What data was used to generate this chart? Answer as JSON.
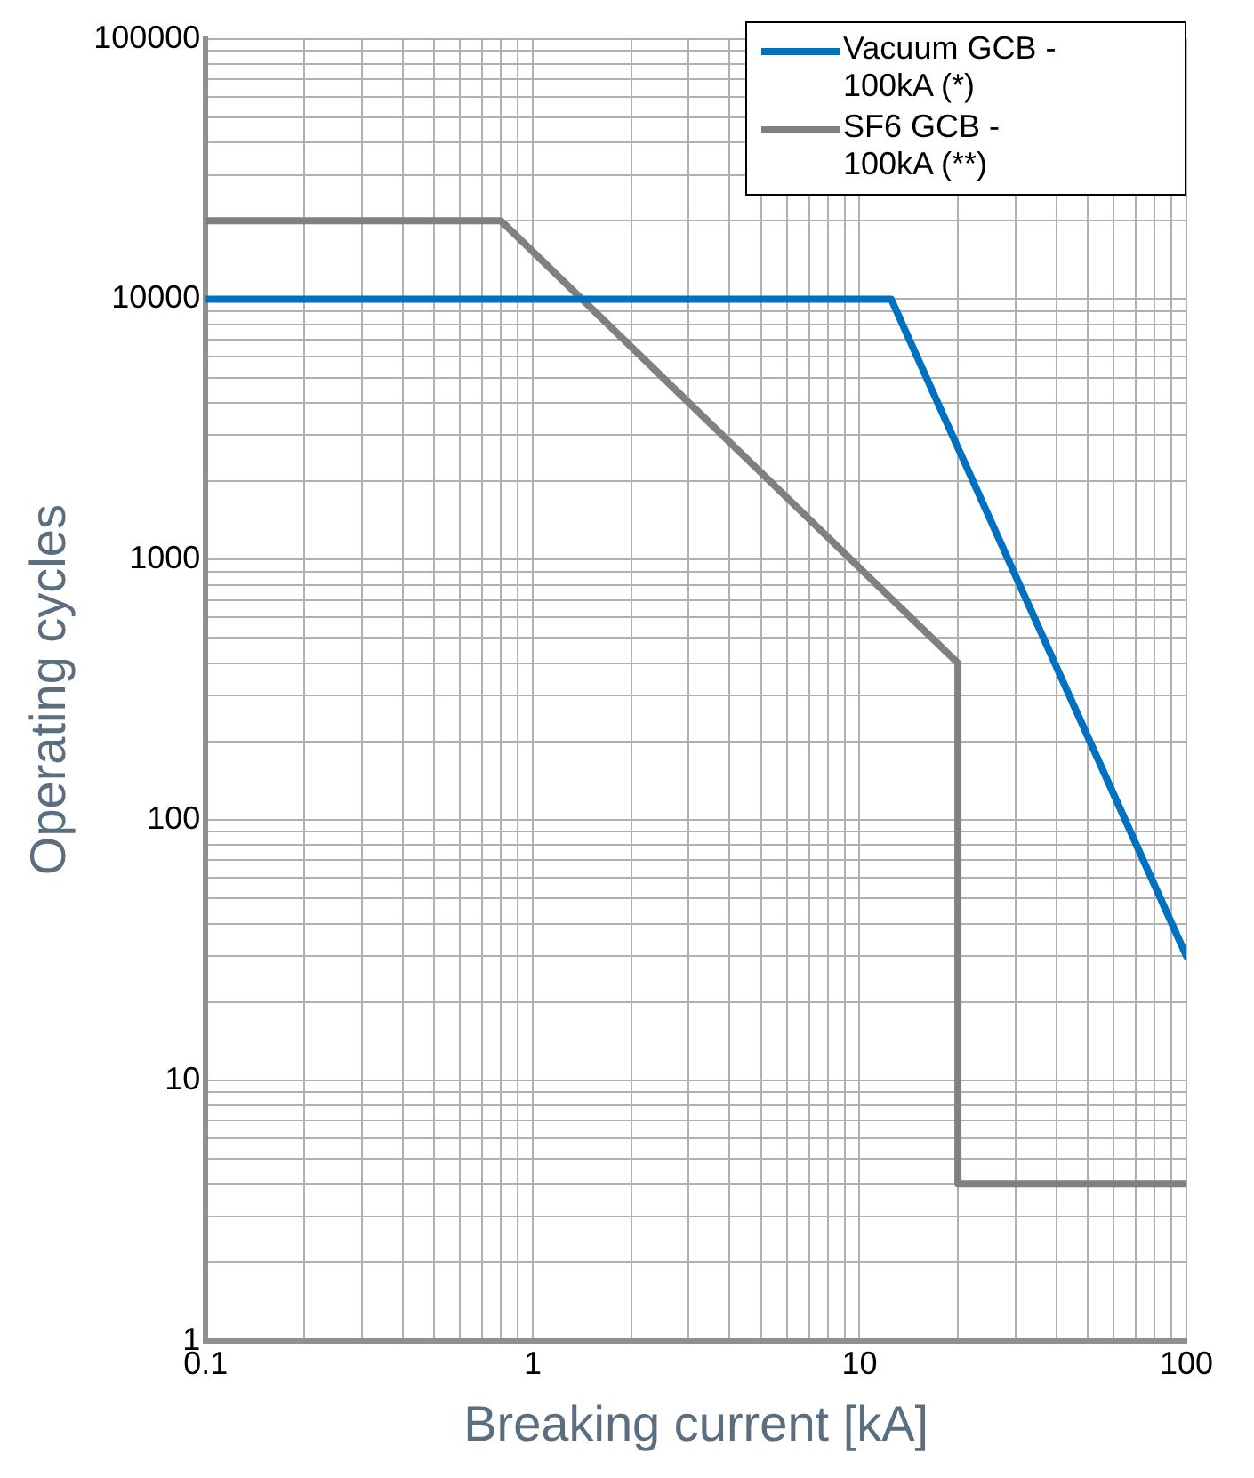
{
  "chart_data": {
    "type": "line",
    "xlabel": "Breaking current [kA]",
    "ylabel": "Operating cycles",
    "log": "xy",
    "grid": true,
    "legend": "top right",
    "marker": "none",
    "line_style": "solid",
    "xlim": [
      0.1,
      100
    ],
    "ylim": [
      1,
      100000
    ],
    "xticks": [
      0.1,
      {
        "value": 0.2,
        "label": null
      },
      {
        "value": 0.3,
        "label": null
      },
      {
        "value": 0.4,
        "label": null
      },
      {
        "value": 0.5,
        "label": null
      },
      {
        "value": 0.6,
        "label": null
      },
      {
        "value": 0.7,
        "label": null
      },
      {
        "value": 0.8,
        "label": null
      },
      {
        "value": 0.9,
        "label": null
      },
      1,
      {
        "value": 2,
        "label": null
      },
      {
        "value": 3,
        "label": null
      },
      {
        "value": 4,
        "label": null
      },
      {
        "value": 5,
        "label": null
      },
      {
        "value": 6,
        "label": null
      },
      {
        "value": 7,
        "label": null
      },
      {
        "value": 8,
        "label": null
      },
      {
        "value": 9,
        "label": null
      },
      10,
      {
        "value": 20,
        "label": null
      },
      {
        "value": 30,
        "label": null
      },
      {
        "value": 40,
        "label": null
      },
      {
        "value": 50,
        "label": null
      },
      {
        "value": 60,
        "label": null
      },
      {
        "value": 70,
        "label": null
      },
      {
        "value": 80,
        "label": null
      },
      {
        "value": 90,
        "label": null
      },
      100
    ],
    "yticks": [
      1,
      {
        "value": 2,
        "label": null
      },
      {
        "value": 3,
        "label": null
      },
      {
        "value": 4,
        "label": null
      },
      {
        "value": 5,
        "label": null
      },
      {
        "value": 6,
        "label": null
      },
      {
        "value": 7,
        "label": null
      },
      {
        "value": 8,
        "label": null
      },
      {
        "value": 9,
        "label": null
      },
      10,
      {
        "value": 20,
        "label": null
      },
      {
        "value": 30,
        "label": null
      },
      {
        "value": 40,
        "label": null
      },
      {
        "value": 50,
        "label": null
      },
      {
        "value": 60,
        "label": null
      },
      {
        "value": 70,
        "label": null
      },
      {
        "value": 80,
        "label": null
      },
      {
        "value": 90,
        "label": null
      },
      100,
      {
        "value": 200,
        "label": null
      },
      {
        "value": 300,
        "label": null
      },
      {
        "value": 400,
        "label": null
      },
      {
        "value": 500,
        "label": null
      },
      {
        "value": 600,
        "label": null
      },
      {
        "value": 700,
        "label": null
      },
      {
        "value": 800,
        "label": null
      },
      {
        "value": 900,
        "label": null
      },
      1000,
      {
        "value": 2000,
        "label": null
      },
      {
        "value": 3000,
        "label": null
      },
      {
        "value": 4000,
        "label": null
      },
      {
        "value": 5000,
        "label": null
      },
      {
        "value": 6000,
        "label": null
      },
      {
        "value": 7000,
        "label": null
      },
      {
        "value": 8000,
        "label": null
      },
      {
        "value": 9000,
        "label": null
      },
      10000,
      {
        "value": 20000,
        "label": null
      },
      {
        "value": 30000,
        "label": null
      },
      {
        "value": 40000,
        "label": null
      },
      {
        "value": 50000,
        "label": null
      },
      {
        "value": 60000,
        "label": null
      },
      {
        "value": 70000,
        "label": null
      },
      {
        "value": 80000,
        "label": null
      },
      {
        "value": 90000,
        "label": null
      },
      100000
    ],
    "series": [
      {
        "name": "Vacuum GCB - 100kA (*)",
        "color": "#0070c0",
        "x": [
          0.1,
          12.5,
          100
        ],
        "values": [
          10000,
          10000,
          30
        ]
      },
      {
        "name": "SF6 GCB - 100kA (**)",
        "color": "#808080",
        "x": [
          0.1,
          0.8,
          20,
          20,
          100
        ],
        "values": [
          20000,
          20000,
          400,
          4,
          4
        ]
      }
    ]
  }
}
